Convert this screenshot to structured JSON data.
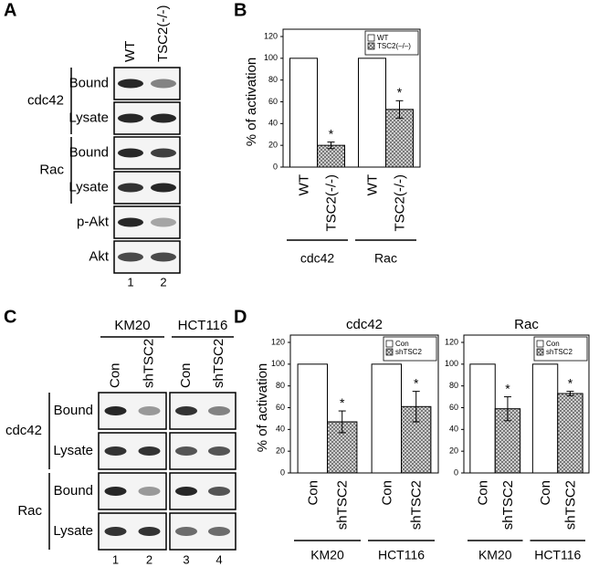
{
  "panel_labels": {
    "a": "A",
    "b": "B",
    "c": "C",
    "d": "D"
  },
  "blot_a": {
    "lanes": [
      "WT",
      "TSC2(-/-)"
    ],
    "groups": [
      {
        "name": "cdc42",
        "rows": [
          "Bound",
          "Lysate"
        ]
      },
      {
        "name": "Rac",
        "rows": [
          "Bound",
          "Lysate"
        ]
      }
    ],
    "extra_rows": [
      "p-Akt",
      "Akt"
    ],
    "lane_numbers": [
      "1",
      "2"
    ]
  },
  "blot_c": {
    "cell_lines": [
      "KM20",
      "HCT116"
    ],
    "lanes": [
      "Con",
      "shTSC2",
      "Con",
      "shTSC2"
    ],
    "groups": [
      {
        "name": "cdc42",
        "rows": [
          "Bound",
          "Lysate"
        ]
      },
      {
        "name": "Rac",
        "rows": [
          "Bound",
          "Lysate"
        ]
      }
    ],
    "lane_numbers": [
      "1",
      "2",
      "3",
      "4"
    ]
  },
  "chart_data": [
    {
      "type": "bar",
      "ylabel": "% of activation",
      "ylim": [
        0,
        120
      ],
      "yticks": [
        0,
        20,
        40,
        60,
        80,
        100,
        120
      ],
      "categories": [
        "cdc42",
        "Rac"
      ],
      "bar_labels": [
        "WT",
        "TSC2(-/-)"
      ],
      "legend": "upper right",
      "series": [
        {
          "name": "WT",
          "color": "#ffffff",
          "values": [
            100,
            100
          ]
        },
        {
          "name": "TSC2(–/–)",
          "color": "#777777",
          "hatch": true,
          "values": [
            20,
            53
          ],
          "errors": [
            3,
            8
          ],
          "annotations": [
            "*",
            "*"
          ]
        }
      ]
    },
    {
      "type": "bar",
      "title": "cdc42",
      "ylabel": "% of activation",
      "ylim": [
        0,
        120
      ],
      "yticks": [
        0,
        20,
        40,
        60,
        80,
        100,
        120
      ],
      "categories": [
        "KM20",
        "HCT116"
      ],
      "bar_labels": [
        "Con",
        "shTSC2"
      ],
      "legend": "upper right",
      "series": [
        {
          "name": "Con",
          "color": "#ffffff",
          "values": [
            100,
            100
          ]
        },
        {
          "name": "shTSC2",
          "color": "#777777",
          "hatch": true,
          "values": [
            47,
            61
          ],
          "errors": [
            10,
            14
          ],
          "annotations": [
            "*",
            "*"
          ]
        }
      ]
    },
    {
      "type": "bar",
      "title": "Rac",
      "ylim": [
        0,
        120
      ],
      "yticks": [
        0,
        20,
        40,
        60,
        80,
        100,
        120
      ],
      "categories": [
        "KM20",
        "HCT116"
      ],
      "bar_labels": [
        "Con",
        "shTSC2"
      ],
      "legend": "upper right",
      "series": [
        {
          "name": "Con",
          "color": "#ffffff",
          "values": [
            100,
            100
          ]
        },
        {
          "name": "shTSC2",
          "color": "#777777",
          "hatch": true,
          "values": [
            59,
            73
          ],
          "errors": [
            11,
            2
          ],
          "annotations": [
            "*",
            "*"
          ]
        }
      ]
    }
  ]
}
